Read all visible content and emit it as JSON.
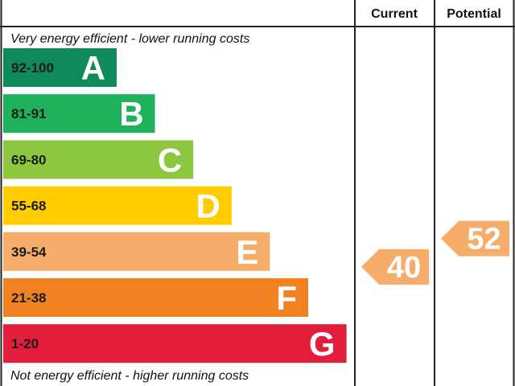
{
  "chart_data": {
    "type": "bar",
    "headers": {
      "current": "Current",
      "potential": "Potential"
    },
    "top_note": "Very energy efficient - lower running costs",
    "bottom_note": "Not energy efficient - higher running costs",
    "bands": [
      {
        "range": "92-100",
        "letter": "A",
        "min": 92,
        "color": "#0f8a5a"
      },
      {
        "range": "81-91",
        "letter": "B",
        "min": 81,
        "color": "#1fb25a"
      },
      {
        "range": "69-80",
        "letter": "C",
        "min": 69,
        "color": "#8dc63f"
      },
      {
        "range": "55-68",
        "letter": "D",
        "min": 55,
        "color": "#ffcc00"
      },
      {
        "range": "39-54",
        "letter": "E",
        "min": 39,
        "color": "#f6ad6a"
      },
      {
        "range": "21-38",
        "letter": "F",
        "min": 21,
        "color": "#f08221"
      },
      {
        "range": "1-20",
        "letter": "G",
        "min": 1,
        "color": "#e31d3c"
      }
    ],
    "current": {
      "value": 40,
      "label": "40",
      "band": "E",
      "color": "#f6ad6a"
    },
    "potential": {
      "value": 52,
      "label": "52",
      "band": "E",
      "color": "#f6ad6a"
    }
  }
}
